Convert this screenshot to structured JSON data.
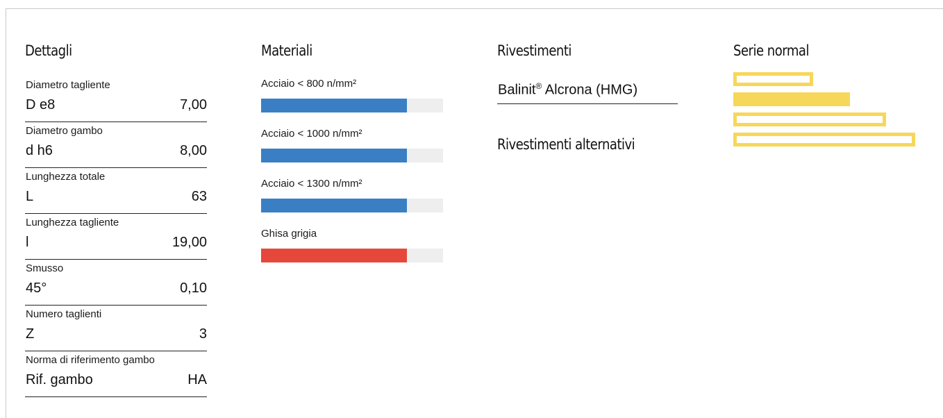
{
  "colors": {
    "steel": "#3a7fc4",
    "cast_iron": "#e5483b",
    "track": "#eeeeee",
    "series_yellow": "#f7d75a"
  },
  "details": {
    "title": "Dettagli",
    "rows": [
      {
        "label": "Diametro tagliente",
        "symbol": "D e8",
        "value": "7,00"
      },
      {
        "label": "Diametro gambo",
        "symbol": "d h6",
        "value": "8,00"
      },
      {
        "label": "Lunghezza totale",
        "symbol": "L",
        "value": "63"
      },
      {
        "label": "Lunghezza tagliente",
        "symbol": "l",
        "value": "19,00"
      },
      {
        "label": "Smusso",
        "symbol": "45°",
        "value": "0,10"
      },
      {
        "label": "Numero taglienti",
        "symbol": "Z",
        "value": "3"
      },
      {
        "label": "Norma di riferimento gambo",
        "symbol": "Rif. gambo",
        "value": "HA"
      }
    ]
  },
  "materials": {
    "title": "Materiali",
    "items": [
      {
        "label": "Acciaio < 800 n/mm²",
        "suitability": 0.8,
        "color": "#3a7fc4"
      },
      {
        "label": "Acciaio < 1000 n/mm²",
        "suitability": 0.8,
        "color": "#3a7fc4"
      },
      {
        "label": "Acciaio < 1300 n/mm²",
        "suitability": 0.8,
        "color": "#3a7fc4"
      },
      {
        "label": "Ghisa grigia",
        "suitability": 0.8,
        "color": "#e5483b"
      }
    ]
  },
  "coatings": {
    "title": "Rivestimenti",
    "name": "Balinit",
    "registered_mark": "®",
    "name_suffix": " Alcrona (HMG)",
    "alternatives_title": "Rivestimenti alternativi"
  },
  "series": {
    "title": "Serie normal",
    "bars": [
      {
        "level": 0.44,
        "filled": false
      },
      {
        "level": 0.64,
        "filled": true
      },
      {
        "level": 0.84,
        "filled": false
      },
      {
        "level": 1.0,
        "filled": false
      }
    ]
  }
}
